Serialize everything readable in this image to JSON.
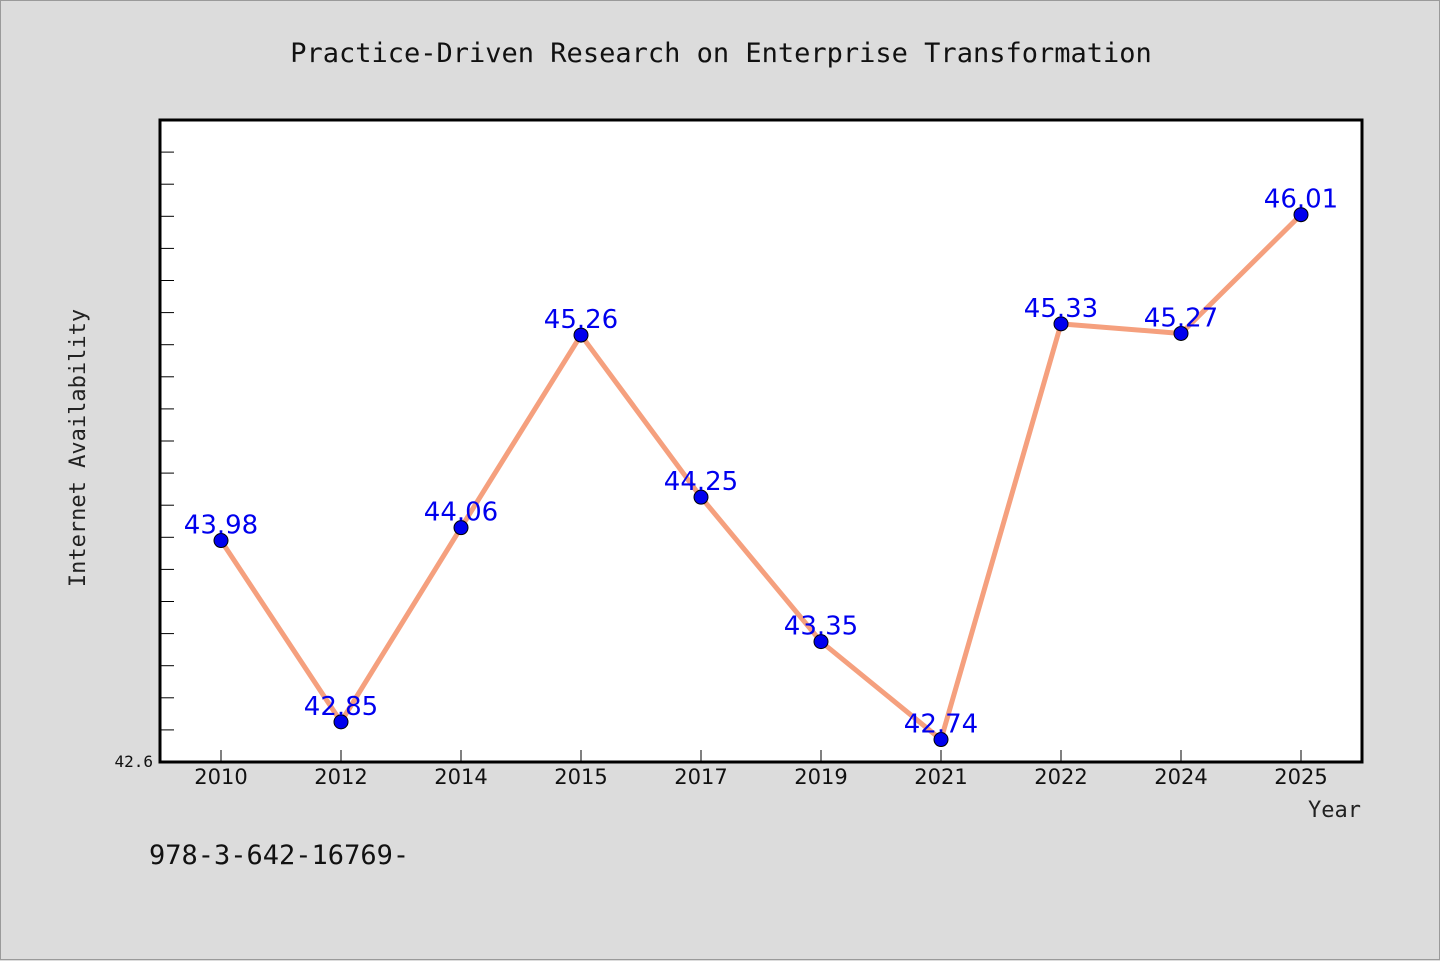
{
  "chart_data": {
    "type": "line",
    "title": "Practice-Driven Research on Enterprise Transformation",
    "xlabel": "Year",
    "ylabel": "Internet Availability",
    "categories": [
      "2010",
      "2012",
      "2014",
      "2015",
      "2017",
      "2019",
      "2021",
      "2022",
      "2024",
      "2025"
    ],
    "series": [
      {
        "values": [
          43.98,
          42.85,
          44.06,
          45.26,
          44.25,
          43.35,
          42.74,
          45.33,
          45.27,
          46.01
        ],
        "data_labels": [
          "43.98",
          "42.85",
          "44.06",
          "45.26",
          "44.25",
          "43.35",
          "42.74",
          "45.33",
          "45.27",
          "46.01"
        ]
      }
    ],
    "ylim": [
      42.6,
      46.6
    ],
    "y_tick_labels": [
      "42.6"
    ],
    "grid": false,
    "line_color": "#f5a07e",
    "marker_color": "#0000ee",
    "label_color": "#0000ee",
    "plot_background": "#ffffff",
    "figure_background": "#dcdcdc"
  },
  "footnote": "978-3-642-16769-"
}
